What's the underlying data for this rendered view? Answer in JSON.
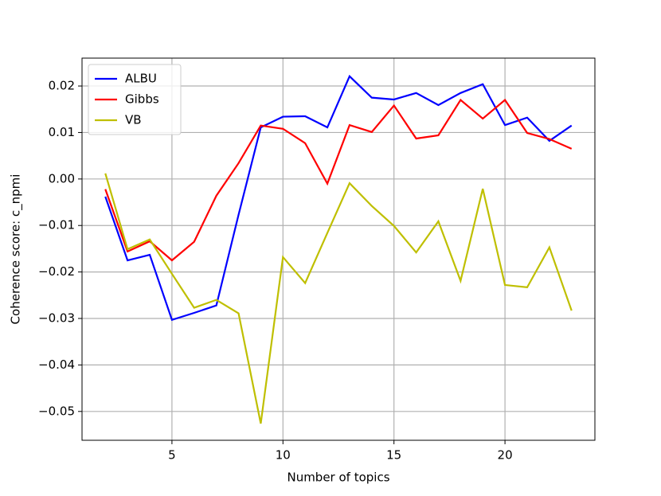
{
  "chart_data": {
    "type": "line",
    "xlabel": "Number of topics",
    "ylabel": "Coherence score: c_npmi",
    "x": [
      2,
      3,
      4,
      5,
      6,
      7,
      8,
      9,
      10,
      11,
      12,
      13,
      14,
      15,
      16,
      17,
      18,
      19,
      20,
      21,
      22,
      23
    ],
    "series": [
      {
        "name": "ALBU",
        "color": "#0000ff",
        "values": [
          -0.0038,
          -0.0175,
          -0.0163,
          -0.0303,
          -0.0288,
          -0.0272,
          -0.0077,
          0.0111,
          0.0134,
          0.0135,
          0.0111,
          0.0221,
          0.0175,
          0.0171,
          0.0185,
          0.0159,
          0.0185,
          0.0204,
          0.0116,
          0.0132,
          0.0082,
          0.0115
        ]
      },
      {
        "name": "Gibbs",
        "color": "#ff0000",
        "values": [
          -0.0022,
          -0.0156,
          -0.0134,
          -0.0175,
          -0.0135,
          -0.0036,
          0.0034,
          0.0115,
          0.0108,
          0.0077,
          -0.001,
          0.0116,
          0.0101,
          0.0158,
          0.0087,
          0.0094,
          0.017,
          0.013,
          0.017,
          0.0099,
          0.0086,
          0.0065
        ]
      },
      {
        "name": "VB",
        "color": "#bfbf00",
        "values": [
          0.0012,
          -0.0151,
          -0.013,
          -0.0204,
          -0.0277,
          -0.026,
          -0.0289,
          -0.0526,
          -0.0168,
          -0.0224,
          -0.0116,
          -0.0009,
          -0.0058,
          -0.0101,
          -0.0158,
          -0.0091,
          -0.0219,
          -0.0021,
          -0.0228,
          -0.0233,
          -0.0147,
          -0.0283
        ]
      }
    ],
    "xlim": [
      0.95,
      24.05
    ],
    "xticks": [
      5,
      10,
      15,
      20
    ],
    "ylim": [
      -0.0562,
      0.026
    ],
    "yticks": [
      0.02,
      0.01,
      {
        "value": 0,
        "label": "0.00"
      },
      {
        "value": -0.01,
        "label": "−0.01"
      },
      {
        "value": -0.02,
        "label": "−0.02"
      },
      {
        "value": -0.03,
        "label": "−0.03"
      },
      {
        "value": -0.04,
        "label": "−0.04"
      },
      {
        "value": -0.05,
        "label": "−0.05"
      }
    ],
    "grid": true,
    "legend": "upper left"
  }
}
